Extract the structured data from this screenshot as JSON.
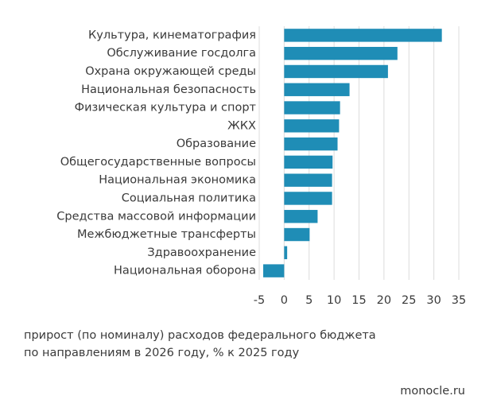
{
  "chart_data": {
    "type": "bar",
    "orientation": "horizontal",
    "categories": [
      "Культура, кинематография",
      "Обслуживание госдолга",
      "Охрана окружающей среды",
      "Национальная безопасность",
      "Физическая культура и спорт",
      "ЖКХ",
      "Образование",
      "Общегосударственные вопросы",
      "Национальная экономика",
      "Социальная политика",
      "Средства массовой информации",
      "Межбюджетные трансферты",
      "Здравоохранение",
      "Национальная оборона"
    ],
    "values": [
      31.6,
      22.7,
      20.8,
      13.1,
      11.2,
      11.0,
      10.7,
      9.7,
      9.6,
      9.6,
      6.7,
      5.1,
      0.6,
      -4.2
    ],
    "color": "#1f8db6",
    "xlim": [
      -5,
      35
    ],
    "xticks": [
      -5,
      0,
      5,
      10,
      15,
      20,
      25,
      30,
      35
    ],
    "grid": true,
    "caption": [
      "прирост (по номиналу) расходов федерального бюджета",
      "по направлениям в 2026 году, % к 2025 году"
    ],
    "source": "monocle.ru"
  }
}
